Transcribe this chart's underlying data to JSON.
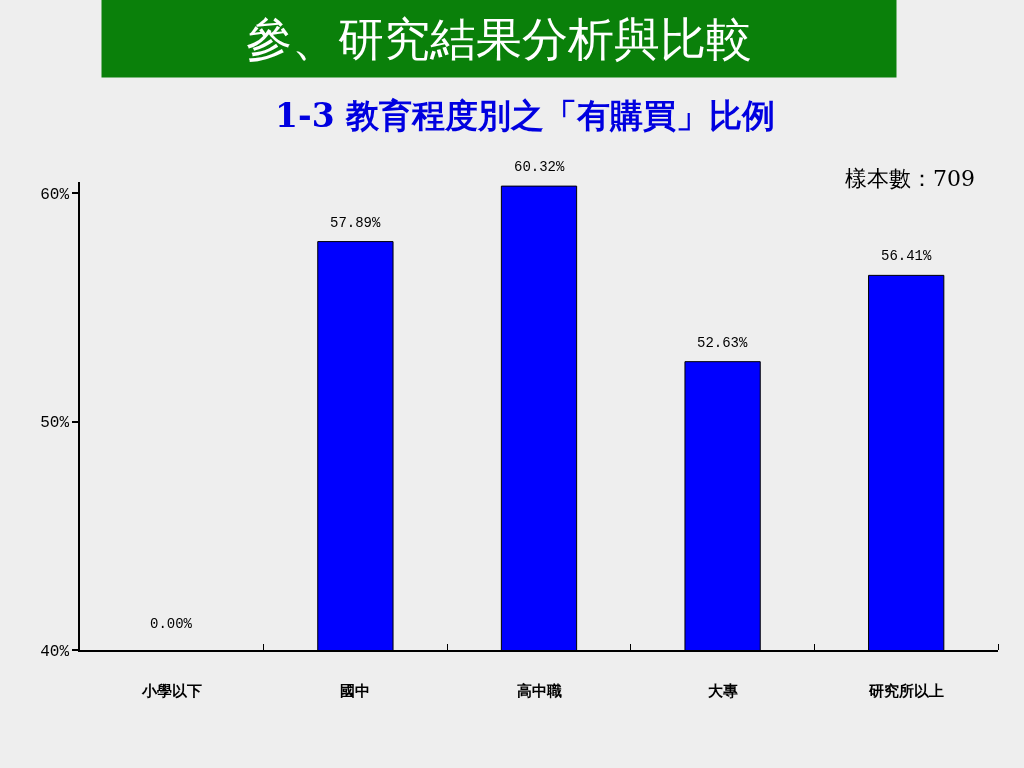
{
  "chart_data": {
    "type": "bar",
    "title": "參、研究結果分析與比較",
    "subtitle": "1-3 教育程度別之「有購買」比例",
    "annotations": [
      "樣本數：709"
    ],
    "categories": [
      "小學以下",
      "國中",
      "高中職",
      "大專",
      "研究所以上"
    ],
    "values": [
      null,
      57.89,
      60.32,
      52.63,
      56.41
    ],
    "color": "#0000ff",
    "value_labels": [
      "0.00%",
      "57.89%",
      "60.32%",
      "52.63%",
      "56.41%"
    ],
    "ylim": [
      40,
      60.5
    ],
    "yticks": [
      {
        "value": 40,
        "label": "40%"
      },
      {
        "value": 50,
        "label": "50%"
      },
      {
        "value": 60,
        "label": "60%"
      }
    ]
  }
}
